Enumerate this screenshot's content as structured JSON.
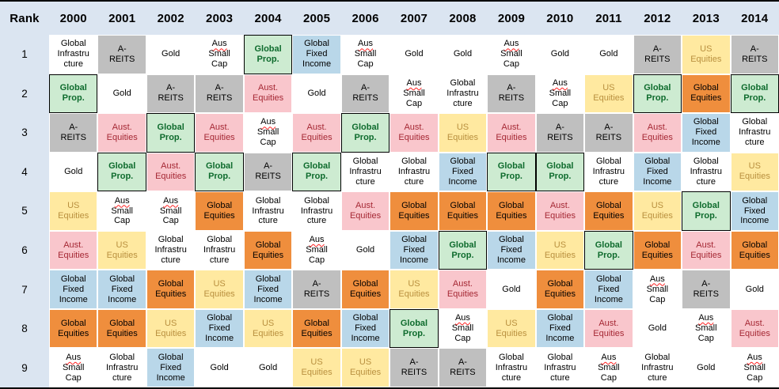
{
  "header": {
    "rank_label": "Rank",
    "years": [
      "2000",
      "2001",
      "2002",
      "2003",
      "2004",
      "2005",
      "2006",
      "2007",
      "2008",
      "2009",
      "2010",
      "2011",
      "2012",
      "2013",
      "2014"
    ]
  },
  "ranks": [
    "1",
    "2",
    "3",
    "4",
    "5",
    "6",
    "7",
    "8",
    "9"
  ],
  "colors": {
    "header_bg": "#dbe5f1",
    "grid_line": "#ffffff",
    "frame_border": "#000000",
    "squiggle": "#ff2020"
  },
  "assets": {
    "GI": {
      "name": "Global Infrastructure",
      "lines": [
        "Global",
        "Infrastru",
        "cture"
      ],
      "bg": "#ffffff",
      "text": "#000000",
      "pattern": "dotted"
    },
    "AR": {
      "name": "A-REITS",
      "lines": [
        "A-",
        "REITS"
      ],
      "bg": "#bfbfbf",
      "text": "#000000"
    },
    "GO": {
      "name": "Gold",
      "lines": [
        "Gold"
      ],
      "bg": "#ffffff",
      "text": "#000000"
    },
    "ASC": {
      "name": "Aus Small Cap",
      "lines": [
        "Aus",
        "Small",
        "Cap"
      ],
      "bg": "#ffffff",
      "text": "#000000",
      "squiggle_line": 0
    },
    "GP": {
      "name": "Global Prop.",
      "lines": [
        "Global",
        "Prop."
      ],
      "bg": "#cdebd1",
      "text": "#0e6b2d",
      "bold": true,
      "border": "#000000"
    },
    "GFI": {
      "name": "Global Fixed Income",
      "lines": [
        "Global",
        "Fixed",
        "Income"
      ],
      "bg": "#b9d7e9",
      "text": "#000000"
    },
    "AE": {
      "name": "Aust. Equities",
      "lines": [
        "Aust.",
        "Equities"
      ],
      "bg": "#f9c6cc",
      "text": "#a52834"
    },
    "USE": {
      "name": "US Equities",
      "lines": [
        "US",
        "Equities"
      ],
      "bg": "#ffe9a0",
      "text": "#b9903f"
    },
    "GE": {
      "name": "Global Equities",
      "lines": [
        "Global",
        "Equities"
      ],
      "bg": "#ef8e3d",
      "text": "#000000"
    }
  },
  "grid": [
    [
      "GI",
      "AR",
      "GO",
      "ASC",
      "GP",
      "GFI",
      "ASC",
      "GO",
      "GO",
      "ASC",
      "GO",
      "GO",
      "AR",
      "USE",
      "AR"
    ],
    [
      "GP",
      "GO",
      "AR",
      "AR",
      "AE",
      "GO",
      "AR",
      "ASC",
      "GI",
      "AR",
      "ASC",
      "USE",
      "GP",
      "GE",
      "GP"
    ],
    [
      "AR",
      "AE",
      "GP",
      "AE",
      "ASC",
      "AE",
      "GP",
      "AE",
      "USE",
      "AE",
      "AR",
      "AR",
      "AE",
      "GFI",
      "GI"
    ],
    [
      "GO",
      "GP",
      "AE",
      "GP",
      "AR",
      "GP",
      "GI",
      "GI",
      "GFI",
      "GP",
      "GP",
      "GI",
      "GFI",
      "GI",
      "USE"
    ],
    [
      "USE",
      "ASC",
      "ASC",
      "GE",
      "GI",
      "GI",
      "AE",
      "GE",
      "GE",
      "GE",
      "AE",
      "GE",
      "USE",
      "GP",
      "GFI"
    ],
    [
      "AE",
      "USE",
      "GI",
      "GI",
      "GE",
      "ASC",
      "GO",
      "GFI",
      "GP",
      "GFI",
      "USE",
      "GP",
      "GE",
      "AE",
      "GE"
    ],
    [
      "GFI",
      "GFI",
      "GE",
      "USE",
      "GFI",
      "AR",
      "GE",
      "USE",
      "AE",
      "GO",
      "GE",
      "GFI",
      "ASC",
      "AR",
      "GO"
    ],
    [
      "GE",
      "GE",
      "USE",
      "GFI",
      "USE",
      "GE",
      "GFI",
      "GP",
      "ASC",
      "USE",
      "GFI",
      "AE",
      "GO",
      "ASC",
      "AE"
    ],
    [
      "ASC",
      "GI",
      "GFI",
      "GO",
      "GO",
      "USE",
      "USE",
      "AR",
      "AR",
      "GI",
      "GI",
      "ASC",
      "GI",
      "GO",
      "ASC"
    ]
  ],
  "chart_data": {
    "type": "table",
    "title": "Asset class performance ranking by year",
    "columns": [
      "Rank",
      "2000",
      "2001",
      "2002",
      "2003",
      "2004",
      "2005",
      "2006",
      "2007",
      "2008",
      "2009",
      "2010",
      "2011",
      "2012",
      "2013",
      "2014"
    ],
    "rows": [
      [
        "1",
        "Global Infrastructure",
        "A-REITS",
        "Gold",
        "Aus Small Cap",
        "Global Prop.",
        "Global Fixed Income",
        "Aus Small Cap",
        "Gold",
        "Gold",
        "Aus Small Cap",
        "Gold",
        "Gold",
        "A-REITS",
        "US Equities",
        "A-REITS"
      ],
      [
        "2",
        "Global Prop.",
        "Gold",
        "A-REITS",
        "A-REITS",
        "Aust. Equities",
        "Gold",
        "A-REITS",
        "Aus Small Cap",
        "Global Infrastructure",
        "A-REITS",
        "Aus Small Cap",
        "US Equities",
        "Global Prop.",
        "Global Equities",
        "Global Prop."
      ],
      [
        "3",
        "A-REITS",
        "Aust. Equities",
        "Global Prop.",
        "Aust. Equities",
        "Aus Small Cap",
        "Aust. Equities",
        "Global Prop.",
        "Aust. Equities",
        "US Equities",
        "Aust. Equities",
        "A-REITS",
        "A-REITS",
        "Aust. Equities",
        "Global Fixed Income",
        "Global Infrastructure"
      ],
      [
        "4",
        "Gold",
        "Global Prop.",
        "Aust. Equities",
        "Global Prop.",
        "A-REITS",
        "Global Prop.",
        "Global Infrastructure",
        "Global Infrastructure",
        "Global Fixed Income",
        "Global Prop.",
        "Global Prop.",
        "Global Infrastructure",
        "Global Fixed Income",
        "Global Infrastructure",
        "US Equities"
      ],
      [
        "5",
        "US Equities",
        "Aus Small Cap",
        "Aus Small Cap",
        "Global Equities",
        "Global Infrastructure",
        "Global Infrastructure",
        "Aust. Equities",
        "Global Equities",
        "Global Equities",
        "Global Equities",
        "Aust. Equities",
        "Global Equities",
        "US Equities",
        "Global Prop.",
        "Global Fixed Income"
      ],
      [
        "6",
        "Aust. Equities",
        "US Equities",
        "Global Infrastructure",
        "Global Infrastructure",
        "Global Equities",
        "Aus Small Cap",
        "Gold",
        "Global Fixed Income",
        "Global Prop.",
        "Global Fixed Income",
        "US Equities",
        "Global Prop.",
        "Global Equities",
        "Aust. Equities",
        "Global Equities"
      ],
      [
        "7",
        "Global Fixed Income",
        "Global Fixed Income",
        "Global Equities",
        "US Equities",
        "Global Fixed Income",
        "A-REITS",
        "Global Equities",
        "US Equities",
        "Aust. Equities",
        "Gold",
        "Global Equities",
        "Global Fixed Income",
        "Aus Small Cap",
        "A-REITS",
        "Gold"
      ],
      [
        "8",
        "Global Equities",
        "Global Equities",
        "US Equities",
        "Global Fixed Income",
        "US Equities",
        "Global Equities",
        "Global Fixed Income",
        "Global Prop.",
        "Aus Small Cap",
        "US Equities",
        "Global Fixed Income",
        "Aust. Equities",
        "Gold",
        "Aus Small Cap",
        "Aust. Equities"
      ],
      [
        "9",
        "Aus Small Cap",
        "Global Infrastructure",
        "Global Fixed Income",
        "Gold",
        "Gold",
        "US Equities",
        "US Equities",
        "A-REITS",
        "A-REITS",
        "Global Infrastructure",
        "Global Infrastructure",
        "Aus Small Cap",
        "Global Infrastructure",
        "Gold",
        "Aus Small Cap"
      ]
    ],
    "legend_position": "none",
    "grid_lines": "white 1px separators between cells",
    "highlight": "Global Prop. cells outlined in black"
  }
}
